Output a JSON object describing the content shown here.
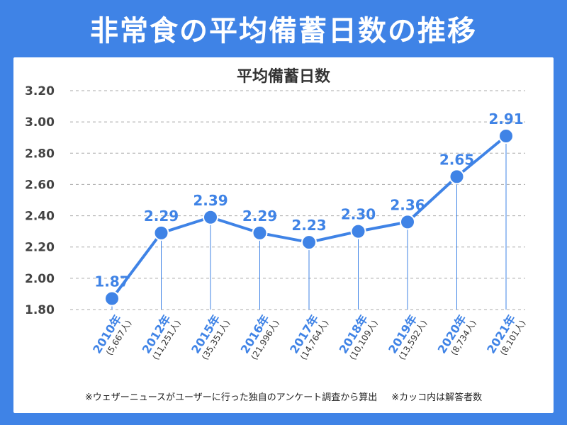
{
  "header": {
    "title": "非常食の平均備蓄日数の推移"
  },
  "chart_data": {
    "type": "line",
    "title": "平均備蓄日数",
    "xlabel": "",
    "ylabel": "",
    "ylim": [
      1.8,
      3.2
    ],
    "yticks": [
      "1.80",
      "2.00",
      "2.20",
      "2.40",
      "2.60",
      "2.80",
      "3.00",
      "3.20"
    ],
    "grid": true,
    "categories": [
      "2010年",
      "2012年",
      "2015年",
      "2016年",
      "2017年",
      "2018年",
      "2019年",
      "2020年",
      "2021年"
    ],
    "respondents": [
      "(5,667人)",
      "(11,251人)",
      "(35,351人)",
      "(21,996人)",
      "(14,764人)",
      "(10,109人)",
      "(13,592人)",
      "(8,734人)",
      "(8,101人)"
    ],
    "values": [
      1.87,
      2.29,
      2.39,
      2.29,
      2.23,
      2.3,
      2.36,
      2.65,
      2.91
    ],
    "value_labels": [
      "1.87",
      "2.29",
      "2.39",
      "2.29",
      "2.23",
      "2.30",
      "2.36",
      "2.65",
      "2.91"
    ],
    "series_color": "#3f83e6",
    "label_color": "#3f83e6"
  },
  "footnote": {
    "source": "※ウェザーニュースがユーザーに行った独自のアンケート調査から算出",
    "note": "※カッコ内は解答者数"
  }
}
